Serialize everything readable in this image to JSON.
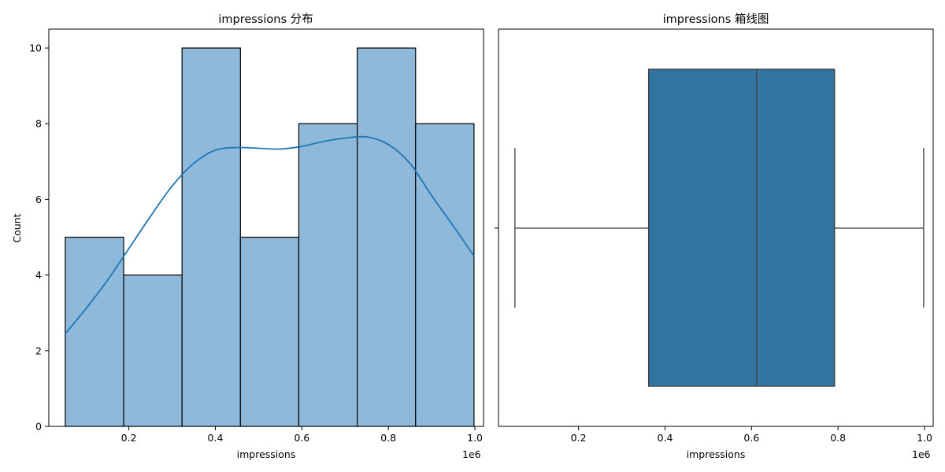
{
  "chart_data": [
    {
      "type": "bar",
      "subtype": "histogram",
      "title": "impressions 分布",
      "xlabel": "impressions",
      "ylabel": "Count",
      "x_offset_label": "1e6",
      "x_scale": 1000000,
      "xlim": [
        15000,
        1020000
      ],
      "ylim": [
        0,
        10.5
      ],
      "xticks": [
        0.2,
        0.4,
        0.6,
        0.8,
        1.0
      ],
      "xtick_labels": [
        "0.2",
        "0.4",
        "0.6",
        "0.8",
        "1.0"
      ],
      "yticks": [
        0,
        2,
        4,
        6,
        8,
        10
      ],
      "ytick_labels": [
        "0",
        "2",
        "4",
        "6",
        "8",
        "10"
      ],
      "bins": [
        {
          "x0": 53000,
          "x1": 188000,
          "count": 5
        },
        {
          "x0": 188000,
          "x1": 323000,
          "count": 4
        },
        {
          "x0": 323000,
          "x1": 458000,
          "count": 10
        },
        {
          "x0": 458000,
          "x1": 593000,
          "count": 5
        },
        {
          "x0": 593000,
          "x1": 728000,
          "count": 8
        },
        {
          "x0": 728000,
          "x1": 863000,
          "count": 10
        },
        {
          "x0": 863000,
          "x1": 998000,
          "count": 8
        }
      ],
      "kde": {
        "x": [
          53000,
          100000,
          150000,
          200000,
          250000,
          300000,
          350000,
          400000,
          450000,
          500000,
          550000,
          600000,
          650000,
          700000,
          750000,
          800000,
          850000,
          900000,
          950000,
          998000
        ],
        "y": [
          2.45,
          3.1,
          3.85,
          4.7,
          5.55,
          6.35,
          6.95,
          7.3,
          7.37,
          7.35,
          7.33,
          7.4,
          7.53,
          7.62,
          7.65,
          7.45,
          6.95,
          6.1,
          5.3,
          4.5
        ]
      },
      "colors": {
        "bar_fill": "#8fb9da",
        "bar_edge": "#000000",
        "kde_line": "#1f77b4"
      }
    },
    {
      "type": "box",
      "title": "impressions 箱线图",
      "xlabel": "impressions",
      "x_offset_label": "1e6",
      "x_scale": 1000000,
      "xlim": [
        15000,
        1020000
      ],
      "xticks": [
        0.2,
        0.4,
        0.6,
        0.8,
        1.0
      ],
      "xtick_labels": [
        "0.2",
        "0.4",
        "0.6",
        "0.8",
        "1.0"
      ],
      "box": {
        "whisker_low": 53000,
        "q1": 362000,
        "median": 612000,
        "q3": 792000,
        "whisker_high": 998000
      },
      "colors": {
        "box_fill": "#3274a1",
        "line": "#3f3f3f"
      }
    }
  ]
}
